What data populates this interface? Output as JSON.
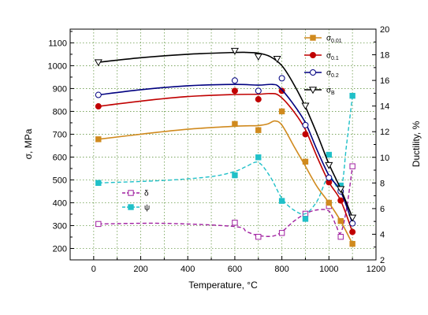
{
  "chart_data": {
    "type": "line",
    "xlabel": "Temperature, °C",
    "ylabel_left": "σ, MPa",
    "ylabel_right": "Ductility, %",
    "x_ticks": [
      0,
      200,
      400,
      600,
      800,
      1000,
      1200
    ],
    "y_left_ticks": [
      200,
      300,
      400,
      500,
      600,
      700,
      800,
      900,
      1000,
      1100
    ],
    "y_right_ticks": [
      2,
      4,
      6,
      8,
      10,
      12,
      14,
      16,
      18,
      20
    ],
    "xlim": [
      -100,
      1200
    ],
    "ylim_left": [
      150,
      1160
    ],
    "ylim_right": [
      2,
      20
    ],
    "grid": true,
    "legend_upper": "top-right",
    "legend_lower": "lower-left",
    "series": [
      {
        "name": "σ",
        "name_sub": "0.01",
        "axis": "left",
        "color": "#d08a1e",
        "marker": "square-filled",
        "dash": "solid",
        "x": [
          20,
          600,
          700,
          800,
          900,
          1000,
          1050,
          1100
        ],
        "y": [
          678,
          745,
          718,
          800,
          580,
          400,
          320,
          220
        ],
        "curve_x": [
          20,
          200,
          400,
          600,
          700,
          740,
          770,
          800,
          850,
          900,
          950,
          1000,
          1050,
          1100
        ],
        "curve_y": [
          678,
          700,
          722,
          735,
          738,
          745,
          758,
          740,
          650,
          560,
          470,
          400,
          320,
          220
        ]
      },
      {
        "name": "σ",
        "name_sub": "0.1",
        "axis": "left",
        "color": "#c00000",
        "marker": "circle-filled",
        "dash": "solid",
        "x": [
          20,
          600,
          700,
          800,
          900,
          1000,
          1050,
          1100
        ],
        "y": [
          822,
          890,
          853,
          890,
          700,
          490,
          410,
          272
        ],
        "curve_x": [
          20,
          200,
          400,
          600,
          700,
          750,
          790,
          850,
          900,
          950,
          1000,
          1050,
          1100
        ],
        "curve_y": [
          822,
          845,
          865,
          874,
          875,
          878,
          868,
          800,
          720,
          600,
          490,
          410,
          272
        ]
      },
      {
        "name": "σ",
        "name_sub": "0.2",
        "axis": "left",
        "color": "#000080",
        "marker": "circle-open",
        "dash": "solid",
        "x": [
          20,
          600,
          700,
          800,
          900,
          1000,
          1050,
          1100
        ],
        "y": [
          872,
          935,
          890,
          945,
          740,
          510,
          450,
          310
        ],
        "curve_x": [
          20,
          200,
          400,
          600,
          700,
          760,
          790,
          850,
          900,
          950,
          1000,
          1050,
          1100
        ],
        "curve_y": [
          872,
          895,
          912,
          918,
          915,
          918,
          905,
          830,
          750,
          630,
          520,
          450,
          310
        ]
      },
      {
        "name": "σ",
        "name_sub": "B",
        "axis": "left",
        "color": "#000000",
        "marker": "triangle-down-open",
        "dash": "solid",
        "x": [
          20,
          600,
          700,
          780,
          900,
          1000,
          1050,
          1100
        ],
        "y": [
          1015,
          1065,
          1040,
          1030,
          825,
          565,
          460,
          335
        ],
        "curve_x": [
          20,
          200,
          400,
          600,
          650,
          700,
          750,
          800,
          850,
          900,
          950,
          1000,
          1050,
          1100
        ],
        "curve_y": [
          1015,
          1035,
          1050,
          1058,
          1058,
          1055,
          1040,
          1000,
          920,
          820,
          700,
          570,
          460,
          335
        ]
      },
      {
        "name": "δ",
        "axis": "right",
        "color": "#a020a0",
        "marker": "square-open",
        "dash": "dashed",
        "x": [
          20,
          600,
          700,
          800,
          900,
          1000,
          1050,
          1100
        ],
        "y": [
          4.8,
          4.9,
          3.8,
          4.1,
          5.6,
          6.2,
          3.8,
          9.3
        ],
        "curve_x": [
          20,
          300,
          600,
          650,
          700,
          760,
          800,
          850,
          900,
          950,
          1000,
          1030,
          1050,
          1075,
          1100
        ],
        "curve_y": [
          4.8,
          4.85,
          4.6,
          4.2,
          3.9,
          3.85,
          4.2,
          5.0,
          5.6,
          5.9,
          5.8,
          4.7,
          4.1,
          6.0,
          9.3
        ]
      },
      {
        "name": "ψ",
        "axis": "right",
        "color": "#20c0c8",
        "marker": "square-filled",
        "dash": "dashed",
        "x": [
          20,
          600,
          700,
          800,
          900,
          1000,
          1050,
          1100
        ],
        "y": [
          8.0,
          8.6,
          10.0,
          6.6,
          5.2,
          10.2,
          7.8,
          14.8
        ],
        "curve_x": [
          20,
          300,
          500,
          600,
          650,
          700,
          750,
          800,
          850,
          900,
          950,
          1000,
          1050,
          1075,
          1100
        ],
        "curve_y": [
          8.0,
          8.2,
          8.5,
          8.9,
          9.3,
          9.6,
          8.5,
          6.8,
          5.9,
          5.6,
          6.6,
          8.5,
          7.5,
          11.0,
          14.8
        ]
      }
    ]
  }
}
